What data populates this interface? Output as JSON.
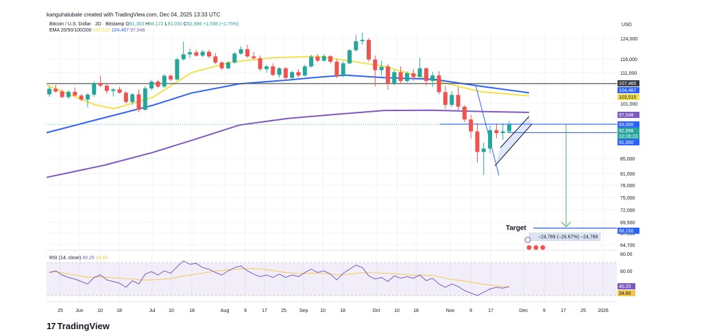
{
  "header": {
    "created_by": "kanguhalubale created with TradingView.com, Dec 04, 2025 13:33 UTC",
    "symbol": "Bitcoin / U.S. Dollar · 2D · Bitstamp",
    "o_label": "O",
    "o_val": "91,303",
    "h_label": "H",
    "h_val": "94,172",
    "l_label": "L",
    "l_val": "91,030",
    "c_label": "C",
    "c_val": "92,898",
    "change": "+1,598 (+1.75%)",
    "ema_label": "EMA 20/50/100/200",
    "ema20": "103,515",
    "ema50": "104,467",
    "ema100": "97,548"
  },
  "chart_data": {
    "type": "candlestick",
    "currency_label": "USD",
    "price_ticks": [
      "124,000",
      "116,000",
      "111,000",
      "101,000",
      "85,000",
      "81,000",
      "78,000",
      "75,000",
      "72,000",
      "69,500",
      "67,000",
      "64,700"
    ],
    "price_tick_values": [
      124000,
      116000,
      111000,
      101000,
      85000,
      81000,
      78000,
      75000,
      72000,
      69500,
      67000,
      64700
    ],
    "x_ticks": [
      "25",
      "Jun",
      "10",
      "18",
      "Jul",
      "10",
      "18",
      "Aug",
      "9",
      "17",
      "25",
      "Sep",
      "10",
      "18",
      "Oct",
      "10",
      "18",
      "Nov",
      "9",
      "17",
      "Dec",
      "9",
      "17",
      "25",
      "2026"
    ],
    "price_badges": [
      {
        "label": "107,465",
        "color": "#363a45"
      },
      {
        "label": "104,467",
        "color": "#2962ff"
      },
      {
        "label": "103,515",
        "color": "#f2e14a"
      },
      {
        "label": "97,548",
        "color": "#7e57c2"
      },
      {
        "label": "93,000",
        "color": "#2962ff"
      },
      {
        "label": "92,898",
        "color": "#26a69a"
      },
      {
        "label": "10:26:23",
        "color": "#26a69a"
      },
      {
        "label": "91,000",
        "color": "#2962ff"
      },
      {
        "label": "68,150",
        "color": "#2962ff"
      }
    ],
    "candles_ohlc": [
      [
        104000,
        106600,
        103200,
        105800
      ],
      [
        105800,
        107000,
        104500,
        104900
      ],
      [
        104900,
        105500,
        102800,
        103100
      ],
      [
        103100,
        105400,
        102500,
        104800
      ],
      [
        104800,
        106200,
        103400,
        103600
      ],
      [
        103600,
        104100,
        101800,
        102300
      ],
      [
        102300,
        104300,
        99500,
        103900
      ],
      [
        103900,
        108200,
        103200,
        107600
      ],
      [
        107600,
        110000,
        106300,
        106800
      ],
      [
        106800,
        107600,
        104200,
        105100
      ],
      [
        105100,
        106000,
        103300,
        105600
      ],
      [
        105600,
        106400,
        104200,
        104500
      ],
      [
        104500,
        105000,
        101000,
        101500
      ],
      [
        101500,
        104400,
        100500,
        104000
      ],
      [
        104000,
        105600,
        97600,
        98600
      ],
      [
        98600,
        106600,
        98200,
        105900
      ],
      [
        105900,
        108600,
        105300,
        108100
      ],
      [
        108100,
        108600,
        106000,
        106500
      ],
      [
        106500,
        110500,
        106100,
        110000
      ],
      [
        110000,
        110500,
        108200,
        108800
      ],
      [
        108800,
        116400,
        108500,
        115900
      ],
      [
        115900,
        122800,
        115400,
        117800
      ],
      [
        117800,
        120000,
        116300,
        118600
      ],
      [
        118600,
        119500,
        116900,
        117300
      ],
      [
        117300,
        119500,
        116700,
        118800
      ],
      [
        118800,
        119600,
        116300,
        117000
      ],
      [
        117000,
        118300,
        114100,
        114700
      ],
      [
        114700,
        115300,
        112000,
        112600
      ],
      [
        112600,
        115300,
        112300,
        114700
      ],
      [
        114700,
        118700,
        114300,
        118100
      ],
      [
        118100,
        120900,
        117600,
        119800
      ],
      [
        119800,
        121500,
        116400,
        117000
      ],
      [
        117000,
        118700,
        115700,
        116300
      ],
      [
        116300,
        117300,
        111600,
        112300
      ],
      [
        112300,
        113800,
        111000,
        113300
      ],
      [
        113300,
        114400,
        109800,
        110300
      ],
      [
        110300,
        113000,
        109400,
        112600
      ],
      [
        112600,
        113000,
        108400,
        109300
      ],
      [
        109300,
        111700,
        108500,
        111200
      ],
      [
        111200,
        112300,
        109400,
        110100
      ],
      [
        110100,
        113900,
        109700,
        113300
      ],
      [
        113300,
        117600,
        112800,
        116900
      ],
      [
        116900,
        117900,
        114800,
        115400
      ],
      [
        115400,
        117800,
        114900,
        117100
      ],
      [
        117100,
        117500,
        114300,
        115000
      ],
      [
        115000,
        116000,
        109200,
        109900
      ],
      [
        109900,
        115100,
        109500,
        114400
      ],
      [
        114400,
        119800,
        114100,
        119400
      ],
      [
        119400,
        125400,
        118900,
        122900
      ],
      [
        122900,
        126200,
        121600,
        123400
      ],
      [
        123400,
        124100,
        115100,
        115800
      ],
      [
        115800,
        117300,
        106600,
        111900
      ],
      [
        111900,
        115400,
        110100,
        113100
      ],
      [
        113300,
        114200,
        105400,
        107500
      ],
      [
        107500,
        112000,
        107000,
        111200
      ],
      [
        111200,
        113300,
        107300,
        108300
      ],
      [
        108300,
        111500,
        107800,
        110800
      ],
      [
        110800,
        112400,
        108300,
        109600
      ],
      [
        109600,
        116400,
        109300,
        112600
      ],
      [
        112600,
        113000,
        106800,
        108300
      ],
      [
        108300,
        111300,
        106400,
        110100
      ],
      [
        110100,
        111500,
        104000,
        104700
      ],
      [
        104700,
        106700,
        98900,
        100500
      ],
      [
        100500,
        105000,
        99600,
        103800
      ],
      [
        103800,
        106400,
        98500,
        99800
      ],
      [
        99800,
        100300,
        93800,
        94800
      ],
      [
        94800,
        96700,
        89600,
        91300
      ],
      [
        91300,
        93300,
        83900,
        86500
      ],
      [
        86500,
        88700,
        80600,
        87300
      ],
      [
        87300,
        92700,
        86200,
        91600
      ],
      [
        91600,
        93300,
        89700,
        90900
      ],
      [
        90900,
        93400,
        89300,
        91300
      ],
      [
        91300,
        94200,
        91000,
        92900
      ]
    ],
    "ema20_label": "EMA 20",
    "ema50_label": "EMA 50",
    "ema100_label": "EMA 100",
    "ema200_label": "EMA 200",
    "horizontal_level": 107465,
    "target_label": "Target",
    "target_value": 68150,
    "measure_text": "−24,789 (−26.67%) −24,789",
    "rsi": {
      "title": "RSI (14, close)",
      "value": "40.25",
      "ma_value": "34.60",
      "ticks": [
        "80.00",
        "60.00"
      ],
      "badges": [
        {
          "label": "40.25",
          "color": "#7e57c2"
        },
        {
          "label": "34.60",
          "color": "#f2c94c"
        }
      ]
    }
  },
  "brand": {
    "icon": "17",
    "name": "TradingView"
  },
  "colors": {
    "up": "#26a69a",
    "down": "#ef5350",
    "ema20": "#f2e14a",
    "ema50": "#2962ff",
    "ema100": "#7e57c2",
    "ema200": "#5b2c8a",
    "arrow": "#4caf50"
  }
}
